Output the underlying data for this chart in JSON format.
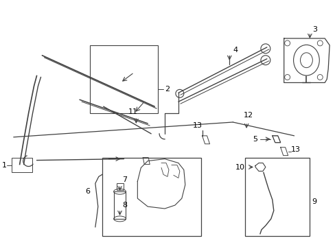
{
  "bg_color": "#ffffff",
  "line_color": "#404040",
  "label_color": "#000000",
  "figsize": [
    4.89,
    3.6
  ],
  "dpi": 100,
  "label_fontsize": 8.0
}
